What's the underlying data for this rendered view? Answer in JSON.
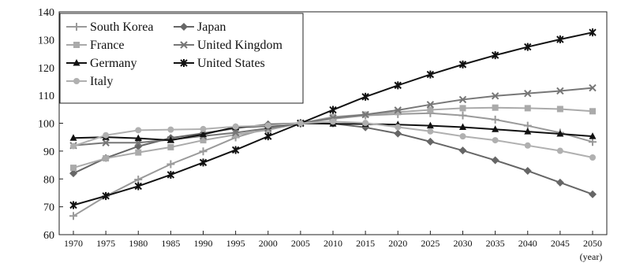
{
  "chart_data": {
    "type": "line",
    "title": "",
    "xlabel": "(year)",
    "ylabel": "",
    "x": [
      1970,
      1975,
      1980,
      1985,
      1990,
      1995,
      2000,
      2005,
      2010,
      2015,
      2020,
      2025,
      2030,
      2035,
      2040,
      2045,
      2050
    ],
    "ylim": [
      60,
      140
    ],
    "yticks": [
      60,
      70,
      80,
      90,
      100,
      110,
      120,
      130,
      140
    ],
    "grid": false,
    "legend_position": "top-left",
    "series": [
      {
        "name": "South Korea",
        "color": "#9a9a9a",
        "marker": "plus",
        "values": [
          66.7,
          73.8,
          79.8,
          85.3,
          89.9,
          94.9,
          98.3,
          100,
          101.6,
          102.8,
          103.3,
          103.6,
          102.8,
          101.3,
          99.1,
          96.6,
          93.3
        ]
      },
      {
        "name": "Japan",
        "color": "#666666",
        "marker": "diamond",
        "values": [
          82.0,
          87.5,
          91.7,
          94.7,
          96.4,
          98.2,
          99.6,
          100,
          99.9,
          98.5,
          96.3,
          93.4,
          90.2,
          86.7,
          82.9,
          78.7,
          74.5
        ]
      },
      {
        "name": "France",
        "color": "#aaaaaa",
        "marker": "square",
        "values": [
          84.0,
          87.4,
          89.5,
          91.4,
          93.9,
          95.9,
          97.6,
          100,
          102.3,
          103.1,
          104.0,
          104.8,
          105.4,
          105.6,
          105.4,
          105.1,
          104.3
        ]
      },
      {
        "name": "United Kingdom",
        "color": "#777777",
        "marker": "x",
        "values": [
          92.0,
          93.0,
          93.0,
          94.1,
          95.4,
          96.6,
          98.2,
          100,
          101.9,
          103.1,
          104.7,
          106.7,
          108.5,
          109.8,
          110.7,
          111.6,
          112.7
        ]
      },
      {
        "name": "Germany",
        "color": "#111111",
        "marker": "triangle",
        "values": [
          94.7,
          95.0,
          94.6,
          93.9,
          96.0,
          98.6,
          99.0,
          100,
          99.8,
          99.7,
          99.5,
          99.1,
          98.6,
          97.8,
          97.0,
          96.2,
          95.3
        ]
      },
      {
        "name": "United States",
        "color": "#111111",
        "marker": "asterisk",
        "values": [
          70.6,
          73.9,
          77.4,
          81.5,
          85.9,
          90.4,
          95.3,
          100,
          104.8,
          109.5,
          113.6,
          117.5,
          121.1,
          124.4,
          127.4,
          130.1,
          132.6
        ]
      },
      {
        "name": "Italy",
        "color": "#b0b0b0",
        "marker": "circle",
        "values": [
          91.8,
          95.7,
          97.5,
          97.7,
          97.9,
          98.8,
          99.2,
          100,
          100.6,
          100.1,
          98.6,
          97.1,
          95.3,
          93.9,
          92.0,
          90.1,
          87.7
        ]
      }
    ]
  }
}
